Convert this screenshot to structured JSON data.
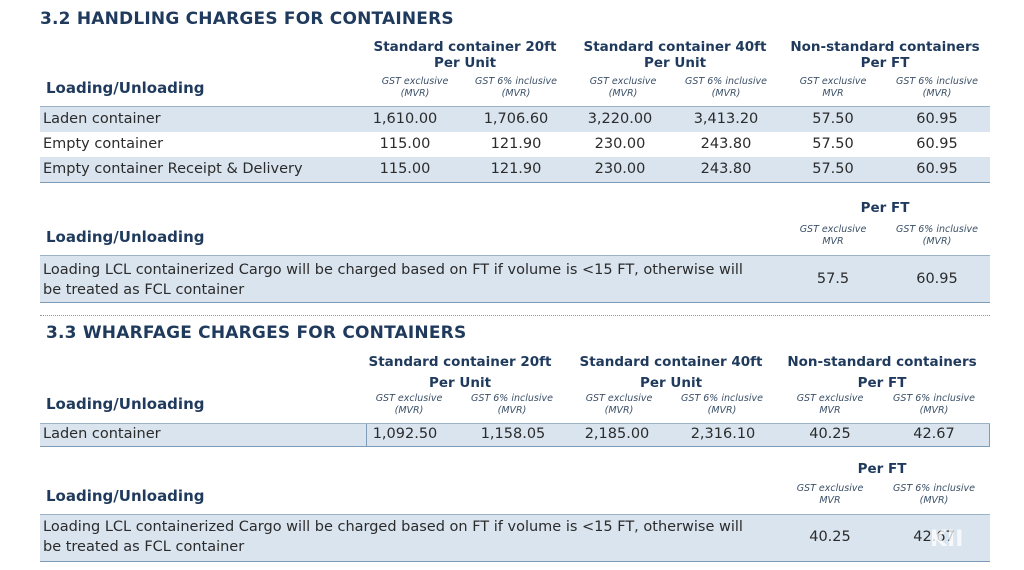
{
  "s32": {
    "title": "3.2  HANDLING CHARGES FOR CONTAINERS",
    "groups": [
      {
        "l1": "Standard container 20ft",
        "l2": "Per Unit"
      },
      {
        "l1": "Standard container 40ft",
        "l2": "Per Unit"
      },
      {
        "l1": "Non-standard containers",
        "l2": "Per FT"
      }
    ],
    "subs": [
      {
        "a": "GST exclusive",
        "b": "(MVR)"
      },
      {
        "a": "GST 6% inclusive",
        "b": "(MVR)"
      },
      {
        "a": "GST exclusive",
        "b": "(MVR)"
      },
      {
        "a": "GST 6% inclusive",
        "b": "(MVR)"
      },
      {
        "a": "GST exclusive",
        "b": "MVR"
      },
      {
        "a": "GST 6% inclusive",
        "b": "(MVR)"
      }
    ],
    "rowlabel": "Loading/Unloading",
    "rows": [
      {
        "label": "Laden container",
        "v": [
          "1,610.00",
          "1,706.60",
          "3,220.00",
          "3,413.20",
          "57.50",
          "60.95"
        ]
      },
      {
        "label": "Empty container",
        "v": [
          "115.00",
          "121.90",
          "230.00",
          "243.80",
          "57.50",
          "60.95"
        ]
      },
      {
        "label": "Empty container Receipt & Delivery",
        "v": [
          "115.00",
          "121.90",
          "230.00",
          "243.80",
          "57.50",
          "60.95"
        ]
      }
    ],
    "lcl": {
      "group": "Per FT",
      "subs": [
        {
          "a": "GST exclusive",
          "b": "MVR"
        },
        {
          "a": "GST 6% inclusive",
          "b": "(MVR)"
        }
      ],
      "rowlabel": "Loading/Unloading",
      "text1": "Loading LCL containerized Cargo will be charged based on FT if volume is <15 FT, otherwise will",
      "text2": "be treated as FCL container",
      "v": [
        "57.5",
        "60.95"
      ]
    }
  },
  "s33": {
    "title": "3.3  WHARFAGE CHARGES FOR CONTAINERS",
    "groups": [
      {
        "l1": "Standard container 20ft",
        "l2": "Per Unit"
      },
      {
        "l1": "Standard container 40ft",
        "l2": "Per Unit"
      },
      {
        "l1": "Non-standard containers",
        "l2": "Per FT"
      }
    ],
    "subs": [
      {
        "a": "GST exclusive",
        "b": "(MVR)"
      },
      {
        "a": "GST 6% inclusive",
        "b": "(MVR)"
      },
      {
        "a": "GST exclusive",
        "b": "(MVR)"
      },
      {
        "a": "GST 6% inclusive",
        "b": "(MVR)"
      },
      {
        "a": "GST exclusive",
        "b": "MVR"
      },
      {
        "a": "GST 6% inclusive",
        "b": "(MVR)"
      }
    ],
    "rowlabel": "Loading/Unloading",
    "rows": [
      {
        "label": "Laden container",
        "v": [
          "1,092.50",
          "1,158.05",
          "2,185.00",
          "2,316.10",
          "40.25",
          "42.67"
        ]
      }
    ],
    "lcl": {
      "group": "Per FT",
      "subs": [
        {
          "a": "GST exclusive",
          "b": "MVR"
        },
        {
          "a": "GST 6% inclusive",
          "b": "(MVR)"
        }
      ],
      "rowlabel": "Loading/Unloading",
      "text1": "Loading LCL containerized Cargo will be charged based on FT if volume is <15 FT, otherwise will",
      "text2": "be treated as FCL container",
      "v": [
        "40.25",
        "42.67"
      ]
    }
  },
  "watermark": "KII"
}
